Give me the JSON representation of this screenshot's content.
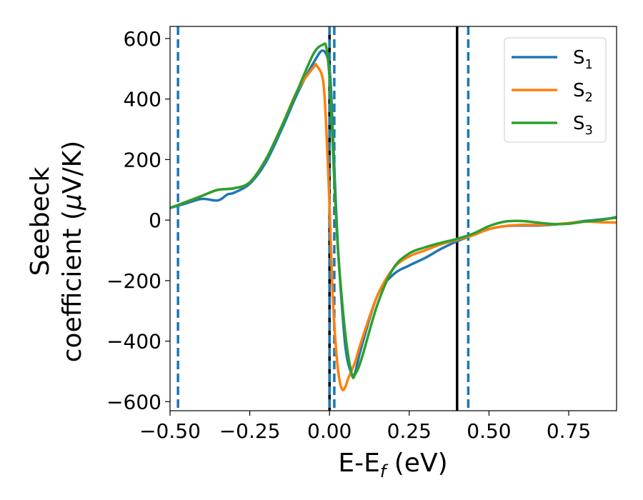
{
  "chart_data": {
    "type": "line",
    "xlabel": "E-E",
    "xlabel_sub": "f",
    "xlabel_unit": " (eV)",
    "ylabel_line1": "Seebeck",
    "ylabel_line2_pre": "coefficient  (",
    "ylabel_mu": "μ",
    "ylabel_line2_post": "V/K)",
    "xlim": [
      -0.5,
      0.9
    ],
    "ylim": [
      -630,
      640
    ],
    "x_ticks": [
      {
        "value": -0.5,
        "label": "−0.50"
      },
      {
        "value": -0.25,
        "label": "−0.25"
      },
      {
        "value": 0.0,
        "label": "0.00"
      },
      {
        "value": 0.25,
        "label": "0.25"
      },
      {
        "value": 0.5,
        "label": "0.50"
      },
      {
        "value": 0.75,
        "label": "0.75"
      }
    ],
    "y_ticks": [
      {
        "value": 600,
        "label": "600"
      },
      {
        "value": 400,
        "label": "400"
      },
      {
        "value": 200,
        "label": "200"
      },
      {
        "value": 0,
        "label": "0"
      },
      {
        "value": -200,
        "label": "−200"
      },
      {
        "value": -400,
        "label": "−400"
      },
      {
        "value": -600,
        "label": "−600"
      }
    ],
    "grid": false,
    "legend_position": "top-right",
    "series": [
      {
        "name": "S",
        "name_sub": "1",
        "color": "#1f77b4",
        "x": [
          -0.5,
          -0.45,
          -0.4,
          -0.35,
          -0.32,
          -0.3,
          -0.25,
          -0.2,
          -0.15,
          -0.1,
          -0.05,
          -0.02,
          0.0,
          0.01,
          0.02,
          0.03,
          0.05,
          0.07,
          0.08,
          0.1,
          0.15,
          0.2,
          0.25,
          0.3,
          0.35,
          0.4,
          0.45,
          0.5,
          0.55,
          0.6,
          0.65,
          0.7,
          0.75,
          0.8,
          0.85,
          0.9
        ],
        "y": [
          40,
          55,
          70,
          65,
          85,
          90,
          120,
          190,
          300,
          420,
          520,
          560,
          500,
          300,
          50,
          -150,
          -420,
          -510,
          -505,
          -420,
          -250,
          -180,
          -150,
          -125,
          -95,
          -70,
          -50,
          -30,
          -20,
          -18,
          -18,
          -15,
          -10,
          -3,
          2,
          8
        ]
      },
      {
        "name": "S",
        "name_sub": "2",
        "color": "#ff7f0e",
        "x": [
          -0.5,
          -0.45,
          -0.4,
          -0.35,
          -0.3,
          -0.25,
          -0.2,
          -0.15,
          -0.1,
          -0.05,
          -0.04,
          -0.02,
          -0.01,
          0.0,
          0.005,
          0.01,
          0.02,
          0.03,
          0.04,
          0.05,
          0.06,
          0.08,
          0.1,
          0.15,
          0.2,
          0.25,
          0.3,
          0.35,
          0.4,
          0.45,
          0.5,
          0.55,
          0.6,
          0.65,
          0.7,
          0.75,
          0.8,
          0.85,
          0.9
        ],
        "y": [
          40,
          60,
          80,
          100,
          105,
          125,
          200,
          310,
          430,
          505,
          510,
          460,
          300,
          50,
          -100,
          -250,
          -420,
          -520,
          -560,
          -550,
          -520,
          -470,
          -400,
          -250,
          -160,
          -120,
          -100,
          -80,
          -65,
          -50,
          -30,
          -20,
          -16,
          -16,
          -14,
          -10,
          -5,
          -7,
          -8
        ]
      },
      {
        "name": "S",
        "name_sub": "3",
        "color": "#2ca02c",
        "x": [
          -0.5,
          -0.45,
          -0.4,
          -0.35,
          -0.3,
          -0.25,
          -0.2,
          -0.15,
          -0.1,
          -0.05,
          -0.02,
          -0.01,
          0.0,
          0.01,
          0.02,
          0.03,
          0.05,
          0.07,
          0.08,
          0.1,
          0.15,
          0.2,
          0.25,
          0.3,
          0.35,
          0.4,
          0.45,
          0.5,
          0.55,
          0.6,
          0.65,
          0.7,
          0.75,
          0.8,
          0.85,
          0.9
        ],
        "y": [
          40,
          60,
          80,
          100,
          105,
          125,
          200,
          310,
          430,
          550,
          580,
          570,
          470,
          250,
          20,
          -150,
          -380,
          -510,
          -510,
          -460,
          -280,
          -160,
          -110,
          -90,
          -75,
          -62,
          -45,
          -20,
          -5,
          -3,
          -8,
          -13,
          -12,
          -5,
          0,
          10
        ]
      }
    ],
    "vlines": [
      {
        "x": -0.475,
        "style": "dashed",
        "color": "#1f77b4"
      },
      {
        "x": 0.0,
        "style": "solid",
        "color": "#000000"
      },
      {
        "x": 0.0,
        "style": "dotted",
        "color": "#000000"
      },
      {
        "x": 0.0,
        "style": "dashed",
        "color": "#1f77b4"
      },
      {
        "x": 0.015,
        "style": "dashed",
        "color": "#1f77b4"
      },
      {
        "x": 0.4,
        "style": "solid",
        "color": "#000000"
      },
      {
        "x": 0.435,
        "style": "dashed",
        "color": "#1f77b4"
      }
    ]
  }
}
